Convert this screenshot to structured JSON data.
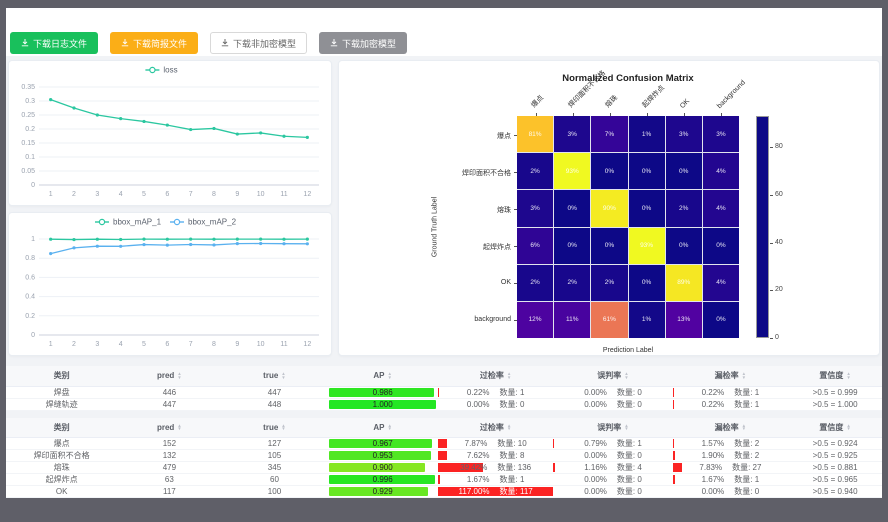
{
  "toolbar": {
    "buttons": [
      {
        "label": "下载日志文件",
        "variant": "green",
        "name": "download-log-button"
      },
      {
        "label": "下载简报文件",
        "variant": "orange",
        "name": "download-brief-button"
      },
      {
        "label": "下载非加密模型",
        "variant": "plain",
        "name": "download-unencrypted-model-button"
      },
      {
        "label": "下载加密模型",
        "variant": "gray",
        "name": "download-encrypted-model-button"
      }
    ]
  },
  "chart_data": [
    {
      "type": "line",
      "title": "",
      "x": [
        1,
        2,
        3,
        4,
        5,
        6,
        7,
        8,
        9,
        10,
        11,
        12
      ],
      "series": [
        {
          "name": "loss",
          "color": "#2bc7a0",
          "values": [
            0.305,
            0.275,
            0.25,
            0.237,
            0.227,
            0.214,
            0.198,
            0.202,
            0.182,
            0.186,
            0.174,
            0.17
          ]
        }
      ],
      "ylim": [
        0,
        0.35
      ],
      "ytick_step": 0.05,
      "grid": true,
      "legend_position": "top"
    },
    {
      "type": "line",
      "title": "",
      "x": [
        1,
        2,
        3,
        4,
        5,
        6,
        7,
        8,
        9,
        10,
        11,
        12
      ],
      "series": [
        {
          "name": "bbox_mAP_1",
          "color": "#2bc7a0",
          "values": [
            0.998,
            0.994,
            0.998,
            0.995,
            0.999,
            0.998,
            0.999,
            0.998,
            0.999,
            0.999,
            0.998,
            0.999
          ]
        },
        {
          "name": "bbox_mAP_2",
          "color": "#5ab1ef",
          "values": [
            0.848,
            0.908,
            0.925,
            0.924,
            0.942,
            0.936,
            0.943,
            0.938,
            0.952,
            0.953,
            0.951,
            0.95
          ]
        }
      ],
      "ylim": [
        0,
        1
      ],
      "ytick_step": 0.2,
      "grid": true,
      "legend_position": "top"
    }
  ],
  "confusion_matrix": {
    "title": "Normalized Confusion Matrix",
    "xlabel": "Prediction Label",
    "ylabel": "Ground Truth Label",
    "labels": [
      "爆点",
      "焊印面积不合格",
      "熔珠",
      "起焊炸点",
      "OK",
      "background"
    ],
    "values": [
      [
        81,
        3,
        7,
        1,
        3,
        3
      ],
      [
        2,
        93,
        0,
        0,
        0,
        4
      ],
      [
        3,
        0,
        90,
        0,
        2,
        4
      ],
      [
        6,
        0,
        0,
        93,
        0,
        0
      ],
      [
        2,
        2,
        2,
        0,
        89,
        4
      ],
      [
        12,
        11,
        61,
        1,
        13,
        0
      ]
    ],
    "vmax": 93,
    "colorbar_ticks": [
      0,
      20,
      40,
      60,
      80
    ]
  },
  "tables": {
    "headers": [
      "类别",
      "pred",
      "true",
      "AP",
      "过检率",
      "误判率",
      "漏检率",
      "置信度"
    ],
    "header_names": [
      "category",
      "pred",
      "true",
      "ap",
      "over-rate",
      "misjudge-rate",
      "miss-rate",
      "confidence"
    ],
    "count_label": "数量:",
    "groups": [
      {
        "rows": [
          {
            "category": "焊盘",
            "pred": "446",
            "true": "447",
            "ap": "0.986",
            "over": {
              "pct": "0.22%",
              "count": "1",
              "value": 0.22
            },
            "mis": {
              "pct": "0.00%",
              "count": "0",
              "value": 0
            },
            "miss": {
              "pct": "0.22%",
              "count": "1",
              "value": 0.22
            },
            "conf": ">0.5 = 0.999"
          },
          {
            "category": "焊缝轨迹",
            "pred": "447",
            "true": "448",
            "ap": "1.000",
            "over": {
              "pct": "0.00%",
              "count": "0",
              "value": 0
            },
            "mis": {
              "pct": "0.00%",
              "count": "0",
              "value": 0
            },
            "miss": {
              "pct": "0.22%",
              "count": "1",
              "value": 0.22
            },
            "conf": ">0.5 = 1.000"
          }
        ]
      },
      {
        "rows": [
          {
            "category": "爆点",
            "pred": "152",
            "true": "127",
            "ap": "0.967",
            "over": {
              "pct": "7.87%",
              "count": "10",
              "value": 7.87
            },
            "mis": {
              "pct": "0.79%",
              "count": "1",
              "value": 0.79
            },
            "miss": {
              "pct": "1.57%",
              "count": "2",
              "value": 1.57
            },
            "conf": ">0.5 = 0.924"
          },
          {
            "category": "焊印面积不合格",
            "pred": "132",
            "true": "105",
            "ap": "0.953",
            "over": {
              "pct": "7.62%",
              "count": "8",
              "value": 7.62
            },
            "mis": {
              "pct": "0.00%",
              "count": "0",
              "value": 0
            },
            "miss": {
              "pct": "1.90%",
              "count": "2",
              "value": 1.9
            },
            "conf": ">0.5 = 0.925"
          },
          {
            "category": "熔珠",
            "pred": "479",
            "true": "345",
            "ap": "0.900",
            "over": {
              "pct": "39.42%",
              "count": "136",
              "value": 39.42
            },
            "mis": {
              "pct": "1.16%",
              "count": "4",
              "value": 1.16
            },
            "miss": {
              "pct": "7.83%",
              "count": "27",
              "value": 7.83
            },
            "conf": ">0.5 = 0.881"
          },
          {
            "category": "起焊炸点",
            "pred": "63",
            "true": "60",
            "ap": "0.996",
            "over": {
              "pct": "1.67%",
              "count": "1",
              "value": 1.67
            },
            "mis": {
              "pct": "0.00%",
              "count": "0",
              "value": 0
            },
            "miss": {
              "pct": "1.67%",
              "count": "1",
              "value": 1.67
            },
            "conf": ">0.5 = 0.965"
          },
          {
            "category": "OK",
            "pred": "117",
            "true": "100",
            "ap": "0.929",
            "over": {
              "pct": "117.00%",
              "count": "117",
              "value": 117
            },
            "mis": {
              "pct": "0.00%",
              "count": "0",
              "value": 0
            },
            "miss": {
              "pct": "0.00%",
              "count": "0",
              "value": 0
            },
            "conf": ">0.5 = 0.940"
          }
        ]
      }
    ]
  }
}
